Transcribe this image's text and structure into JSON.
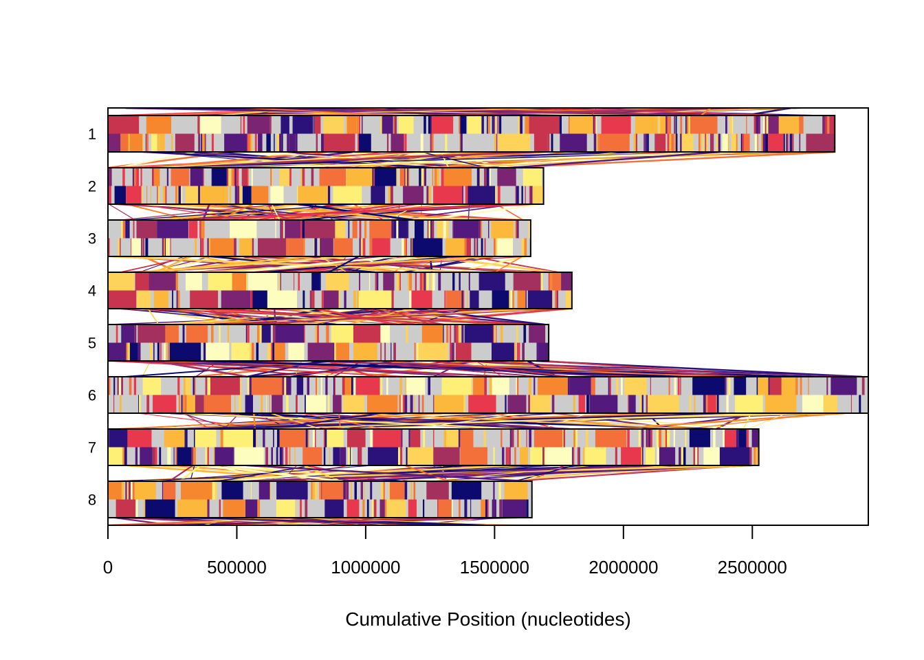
{
  "chart_data": {
    "type": "synteny",
    "title": "",
    "xlabel": "Cumulative Position (nucleotides)",
    "ylabel": "",
    "xlim": [
      0,
      2950000
    ],
    "x_ticks": [
      0,
      500000,
      1000000,
      1500000,
      2000000,
      2500000
    ],
    "x_tick_labels": [
      "0",
      "500000",
      "1000000",
      "1500000",
      "2000000",
      "2500000"
    ],
    "grid": false,
    "legend": "none",
    "colors": [
      "#cccccc",
      "#fcfdbf",
      "#feef77",
      "#fdd35a",
      "#fcb83a",
      "#f7872f",
      "#f3703a",
      "#e8384d",
      "#c8334e",
      "#a4305e",
      "#7b2471",
      "#53197c",
      "#2b117a",
      "#0c0a6e"
    ],
    "chromosomes": [
      {
        "label": "1",
        "length": 2820000
      },
      {
        "label": "2",
        "length": 1690000
      },
      {
        "label": "3",
        "length": 1640000
      },
      {
        "label": "4",
        "length": 1800000
      },
      {
        "label": "5",
        "length": 1710000
      },
      {
        "label": "6",
        "length": 2950000
      },
      {
        "label": "7",
        "length": 2525000
      },
      {
        "label": "8",
        "length": 1645000
      }
    ]
  }
}
